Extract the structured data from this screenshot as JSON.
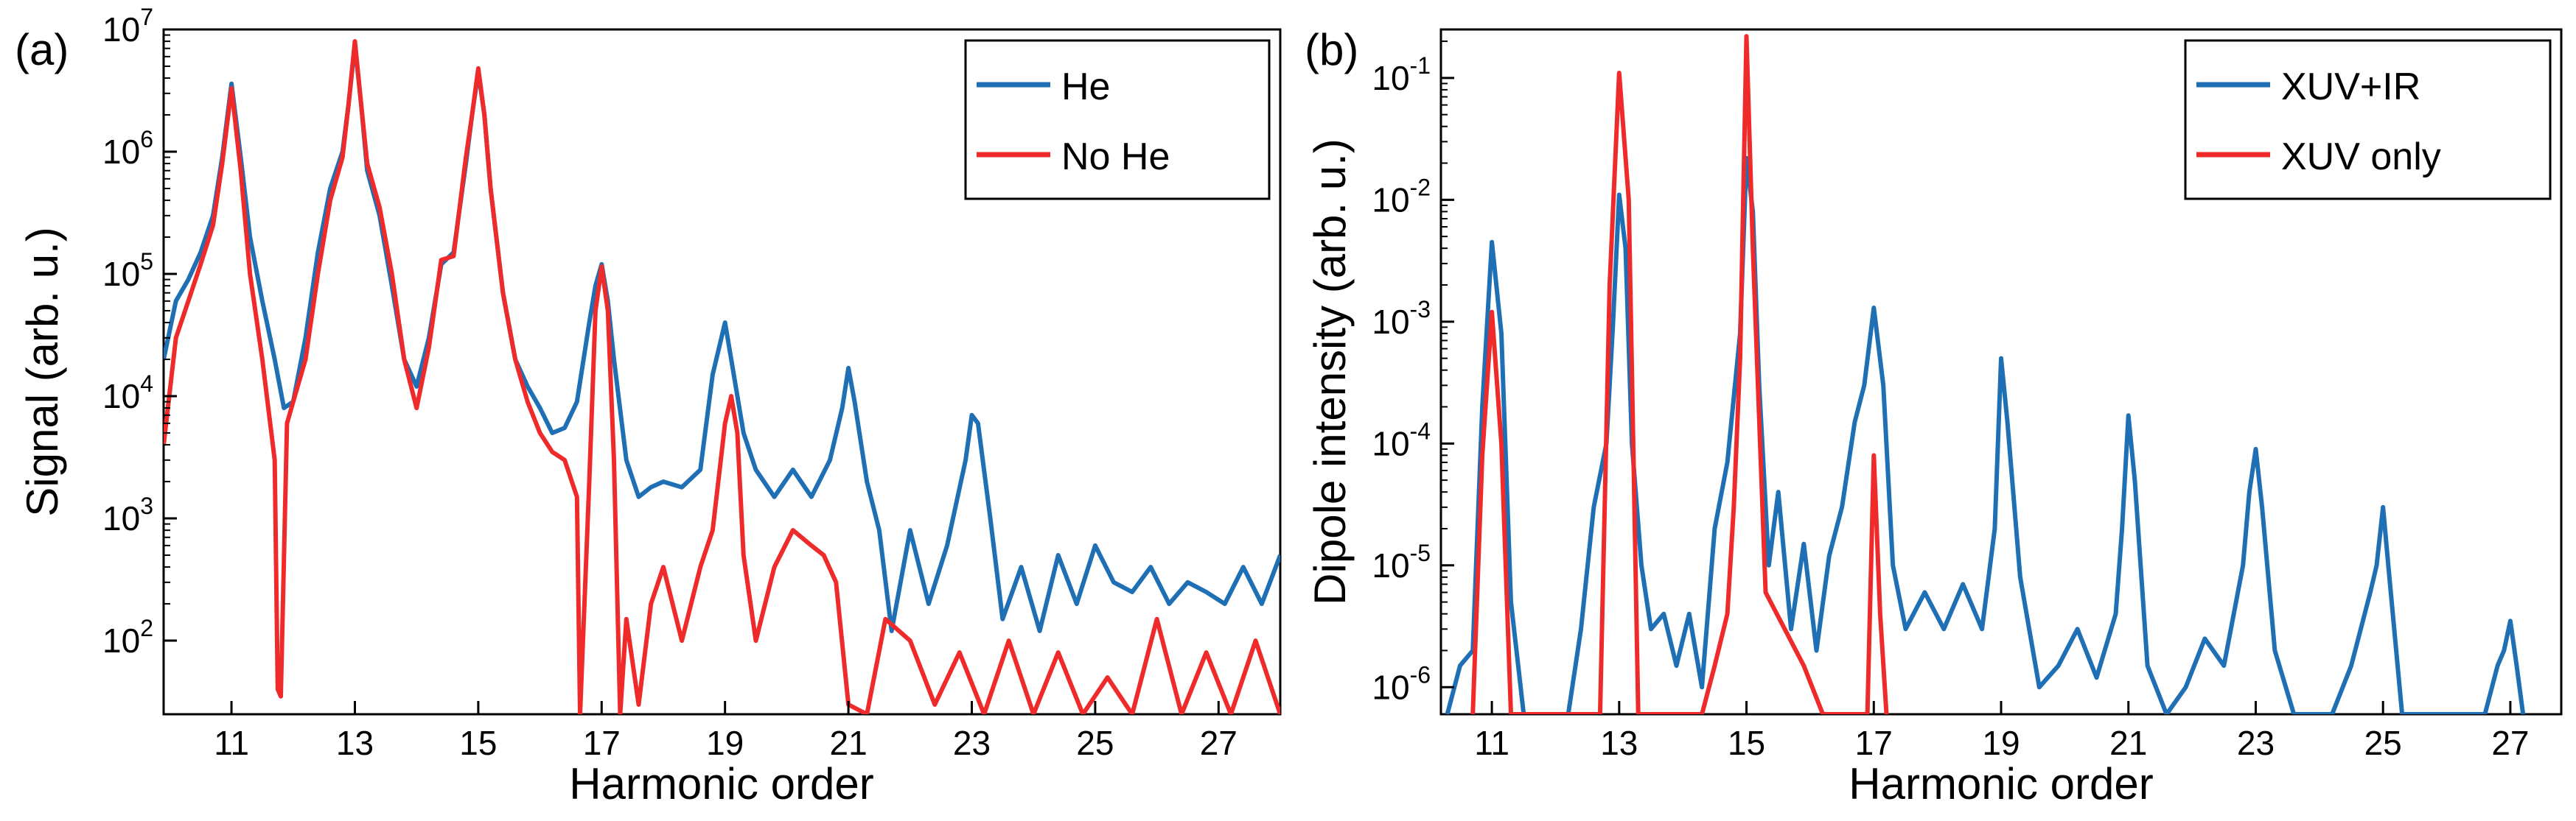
{
  "chart_data": [
    {
      "type": "line",
      "panel_label": "(a)",
      "xlabel": "Harmonic order",
      "ylabel": "Signal (arb. u.)",
      "yscale": "log",
      "xlim": [
        9.9,
        28.0
      ],
      "ylim": [
        25,
        10000000
      ],
      "xticks": [
        11,
        13,
        15,
        17,
        19,
        21,
        23,
        25,
        27
      ],
      "xtick_labels": [
        "11",
        "13",
        "15",
        "17",
        "19",
        "21",
        "23",
        "25",
        "27"
      ],
      "yticks": [
        {
          "value": 100,
          "base": "10",
          "exp": "2"
        },
        {
          "value": 1000,
          "base": "10",
          "exp": "3"
        },
        {
          "value": 10000,
          "base": "10",
          "exp": "4"
        },
        {
          "value": 100000,
          "base": "10",
          "exp": "5"
        },
        {
          "value": 1000000,
          "base": "10",
          "exp": "6"
        },
        {
          "value": 10000000,
          "base": "10",
          "exp": "7"
        }
      ],
      "legend_position": "top-right",
      "series": [
        {
          "name": "He",
          "color": "#1f6fb5",
          "x": [
            9.9,
            10.1,
            10.3,
            10.5,
            10.7,
            10.85,
            11.0,
            11.15,
            11.3,
            11.5,
            11.7,
            11.85,
            12.0,
            12.2,
            12.4,
            12.6,
            12.8,
            12.9,
            13.0,
            13.1,
            13.2,
            13.4,
            13.6,
            13.8,
            14.0,
            14.2,
            14.4,
            14.6,
            14.8,
            14.9,
            15.0,
            15.1,
            15.2,
            15.4,
            15.6,
            15.8,
            16.0,
            16.2,
            16.4,
            16.6,
            16.8,
            16.9,
            17.0,
            17.1,
            17.2,
            17.4,
            17.6,
            17.8,
            18.0,
            18.3,
            18.6,
            18.8,
            19.0,
            19.1,
            19.3,
            19.5,
            19.8,
            20.1,
            20.4,
            20.7,
            20.9,
            21.0,
            21.1,
            21.3,
            21.5,
            21.7,
            22.0,
            22.3,
            22.6,
            22.9,
            23.0,
            23.1,
            23.3,
            23.5,
            23.8,
            24.1,
            24.4,
            24.7,
            25.0,
            25.3,
            25.6,
            25.9,
            26.2,
            26.5,
            26.8,
            27.1,
            27.4,
            27.7,
            28.0
          ],
          "y": [
            20000,
            60000,
            90000,
            150000,
            300000,
            900000,
            3600000,
            900000,
            200000,
            60000,
            20000,
            8000,
            9000,
            30000,
            150000,
            500000,
            1000000,
            2500000,
            7500000,
            2500000,
            700000,
            300000,
            80000,
            20000,
            12000,
            30000,
            120000,
            150000,
            800000,
            2000000,
            4500000,
            2000000,
            500000,
            70000,
            20000,
            12000,
            8000,
            5000,
            5500,
            9000,
            40000,
            80000,
            120000,
            60000,
            20000,
            3000,
            1500,
            1800,
            2000,
            1800,
            2500,
            15000,
            40000,
            20000,
            5000,
            2500,
            1500,
            2500,
            1500,
            3000,
            8000,
            17000,
            9000,
            2000,
            800,
            120,
            800,
            200,
            600,
            3000,
            7000,
            6000,
            1000,
            150,
            400,
            120,
            500,
            200,
            600,
            300,
            250,
            400,
            200,
            300,
            250,
            200,
            400,
            200,
            500
          ]
        },
        {
          "name": "No He",
          "color": "#ee2a2a",
          "x": [
            9.9,
            10.1,
            10.3,
            10.5,
            10.7,
            10.85,
            11.0,
            11.15,
            11.3,
            11.5,
            11.7,
            11.75,
            11.8,
            11.9,
            12.0,
            12.2,
            12.4,
            12.6,
            12.8,
            12.9,
            13.0,
            13.1,
            13.2,
            13.4,
            13.6,
            13.8,
            14.0,
            14.2,
            14.4,
            14.6,
            14.8,
            14.9,
            15.0,
            15.1,
            15.2,
            15.4,
            15.6,
            15.8,
            16.0,
            16.2,
            16.4,
            16.6,
            16.65,
            16.8,
            16.9,
            17.0,
            17.1,
            17.2,
            17.3,
            17.4,
            17.6,
            17.8,
            18.0,
            18.3,
            18.6,
            18.8,
            19.0,
            19.1,
            19.2,
            19.3,
            19.5,
            19.8,
            20.1,
            20.4,
            20.6,
            20.8,
            21.0,
            21.3,
            21.6,
            22.0,
            22.4,
            22.8,
            23.2,
            23.6,
            24.0,
            24.4,
            24.8,
            25.2,
            25.6,
            26.0,
            26.4,
            26.8,
            27.2,
            27.6,
            28.0
          ],
          "y": [
            4000,
            30000,
            60000,
            120000,
            250000,
            800000,
            3300000,
            700000,
            100000,
            20000,
            3000,
            40,
            35,
            6000,
            9000,
            20000,
            100000,
            400000,
            900000,
            2500000,
            8000000,
            2500000,
            800000,
            350000,
            100000,
            20000,
            8000,
            25000,
            130000,
            140000,
            900000,
            2000000,
            4800000,
            2000000,
            500000,
            70000,
            20000,
            9000,
            5000,
            3500,
            3000,
            1500,
            20,
            2000,
            50000,
            115000,
            50000,
            3000,
            20,
            150,
            30,
            200,
            400,
            100,
            400,
            800,
            6000,
            10000,
            5000,
            500,
            100,
            400,
            800,
            600,
            500,
            300,
            30,
            20,
            150,
            100,
            30,
            80,
            20,
            100,
            20,
            80,
            20,
            50,
            20,
            150,
            20,
            80,
            20,
            100,
            20
          ]
        }
      ]
    },
    {
      "type": "line",
      "panel_label": "(b)",
      "xlabel": "Harmonic order",
      "ylabel": "Dipole intensity (arb. u.)",
      "yscale": "log",
      "xlim": [
        10.2,
        27.8
      ],
      "ylim": [
        6e-07,
        0.25
      ],
      "xticks": [
        11,
        13,
        15,
        17,
        19,
        21,
        23,
        25,
        27
      ],
      "xtick_labels": [
        "11",
        "13",
        "15",
        "17",
        "19",
        "21",
        "23",
        "25",
        "27"
      ],
      "yticks": [
        {
          "value": 1e-06,
          "base": "10",
          "exp": "-6"
        },
        {
          "value": 1e-05,
          "base": "10",
          "exp": "-5"
        },
        {
          "value": 0.0001,
          "base": "10",
          "exp": "-4"
        },
        {
          "value": 0.001,
          "base": "10",
          "exp": "-3"
        },
        {
          "value": 0.01,
          "base": "10",
          "exp": "-2"
        },
        {
          "value": 0.1,
          "base": "10",
          "exp": "-1"
        }
      ],
      "legend_position": "top-right",
      "series": [
        {
          "name": "XUV+IR",
          "color": "#1f6fb5",
          "x": [
            10.3,
            10.5,
            10.7,
            10.85,
            11.0,
            11.15,
            11.3,
            11.5,
            12.2,
            12.4,
            12.6,
            12.8,
            12.9,
            13.0,
            13.1,
            13.2,
            13.35,
            13.5,
            13.7,
            13.9,
            14.1,
            14.3,
            14.5,
            14.7,
            14.9,
            15.0,
            15.1,
            15.2,
            15.35,
            15.5,
            15.7,
            15.9,
            16.1,
            16.3,
            16.5,
            16.7,
            16.85,
            17.0,
            17.15,
            17.3,
            17.5,
            17.8,
            18.1,
            18.4,
            18.7,
            18.9,
            19.0,
            19.1,
            19.3,
            19.6,
            19.9,
            20.2,
            20.5,
            20.8,
            20.9,
            21.0,
            21.1,
            21.3,
            21.6,
            21.9,
            22.2,
            22.5,
            22.8,
            22.9,
            23.0,
            23.1,
            23.3,
            23.6,
            24.2,
            24.5,
            24.8,
            24.9,
            25.0,
            25.1,
            25.3,
            26.6,
            26.8,
            26.9,
            27.0,
            27.1,
            27.2
          ],
          "y": [
            6e-07,
            1.5e-06,
            2e-06,
            0.0002,
            0.0045,
            0.0008,
            5e-06,
            6e-07,
            6e-07,
            3e-06,
            3e-05,
            0.0001,
            0.0009,
            0.011,
            0.004,
            0.0001,
            1e-05,
            3e-06,
            4e-06,
            1.5e-06,
            4e-06,
            1e-06,
            2e-05,
            7e-05,
            0.0008,
            0.022,
            0.008,
            0.0003,
            1e-05,
            4e-05,
            3e-06,
            1.5e-05,
            2e-06,
            1.2e-05,
            3e-05,
            0.00015,
            0.0003,
            0.0013,
            0.0003,
            1e-05,
            3e-06,
            6e-06,
            3e-06,
            7e-06,
            3e-06,
            2e-05,
            0.0005,
            0.00015,
            8e-06,
            1e-06,
            1.5e-06,
            3e-06,
            1.2e-06,
            4e-06,
            2e-05,
            0.00017,
            5e-05,
            1.5e-06,
            6e-07,
            1e-06,
            2.5e-06,
            1.5e-06,
            1e-05,
            4e-05,
            9e-05,
            3e-05,
            2e-06,
            6e-07,
            6e-07,
            1.5e-06,
            6e-06,
            1e-05,
            3e-05,
            8e-06,
            6e-07,
            6e-07,
            1.5e-06,
            2e-06,
            3.5e-06,
            1.5e-06,
            6e-07
          ]
        },
        {
          "name": "XUV only",
          "color": "#ee2a2a",
          "x": [
            10.7,
            10.85,
            11.0,
            11.15,
            11.3,
            12.7,
            12.85,
            13.0,
            13.15,
            13.3,
            14.3,
            14.5,
            14.7,
            14.8,
            14.9,
            15.0,
            15.1,
            15.3,
            15.6,
            15.9,
            16.2,
            16.9,
            17.0,
            17.1,
            17.2
          ],
          "y": [
            6e-07,
            8e-05,
            0.0012,
            0.0001,
            6e-07,
            6e-07,
            0.002,
            0.11,
            0.01,
            6e-07,
            6e-07,
            1.5e-06,
            4e-06,
            3e-05,
            0.0005,
            0.22,
            0.004,
            6e-06,
            3e-06,
            1.5e-06,
            6e-07,
            6e-07,
            8e-05,
            4e-06,
            6e-07
          ]
        }
      ]
    }
  ]
}
